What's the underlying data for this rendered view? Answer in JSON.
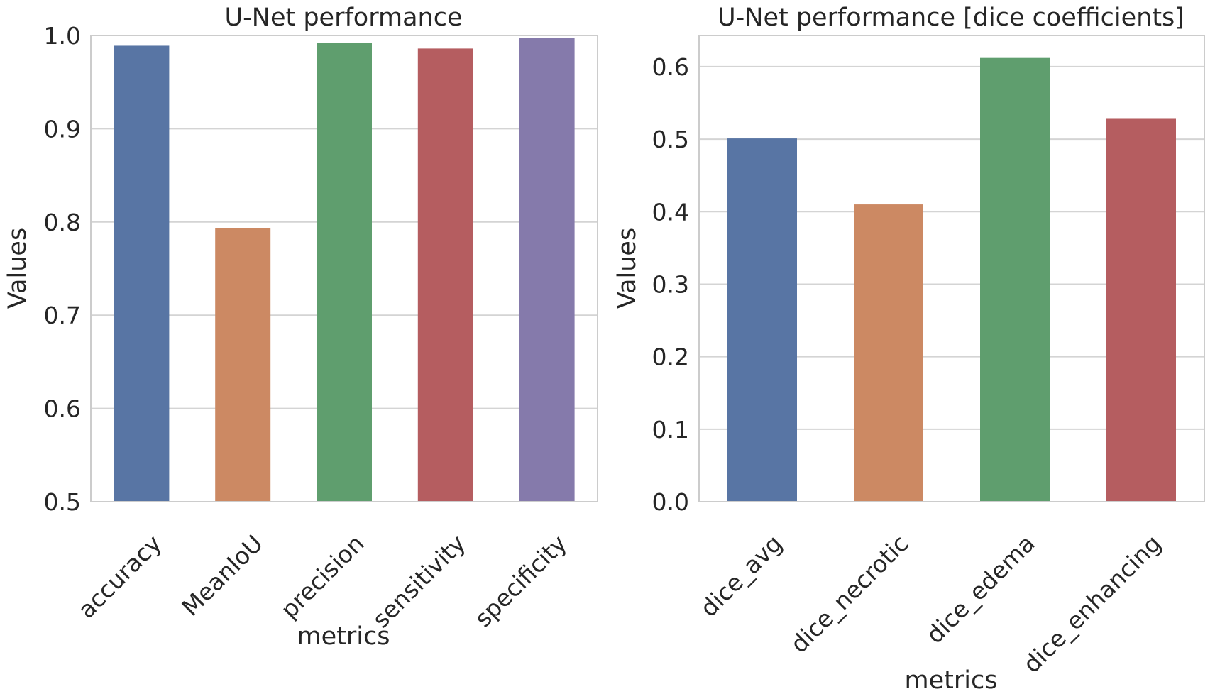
{
  "chart_data": [
    {
      "type": "bar",
      "title": "U-Net performance",
      "xlabel": "metrics",
      "ylabel": "Values",
      "categories": [
        "accuracy",
        "MeanIoU",
        "precision",
        "sensitivity",
        "specificity"
      ],
      "values": [
        0.989,
        0.793,
        0.992,
        0.986,
        0.997
      ],
      "colors": [
        "#5875a4",
        "#cc8963",
        "#5f9e6e",
        "#b55d60",
        "#857aab"
      ],
      "ylim": [
        0.5,
        1.0
      ],
      "yticks": [
        "0.5",
        "0.6",
        "0.7",
        "0.8",
        "0.9",
        "1.0"
      ],
      "grid": true
    },
    {
      "type": "bar",
      "title": "U-Net performance [dice coefficients]",
      "xlabel": "metrics",
      "ylabel": "Values",
      "categories": [
        "dice_avg",
        "dice_necrotic",
        "dice_edema",
        "dice_enhancing"
      ],
      "values": [
        0.501,
        0.41,
        0.612,
        0.529
      ],
      "colors": [
        "#5875a4",
        "#cc8963",
        "#5f9e6e",
        "#b55d60"
      ],
      "ylim": [
        0.0,
        0.643
      ],
      "yticks": [
        "0.0",
        "0.1",
        "0.2",
        "0.3",
        "0.4",
        "0.5",
        "0.6"
      ],
      "grid": true
    }
  ]
}
